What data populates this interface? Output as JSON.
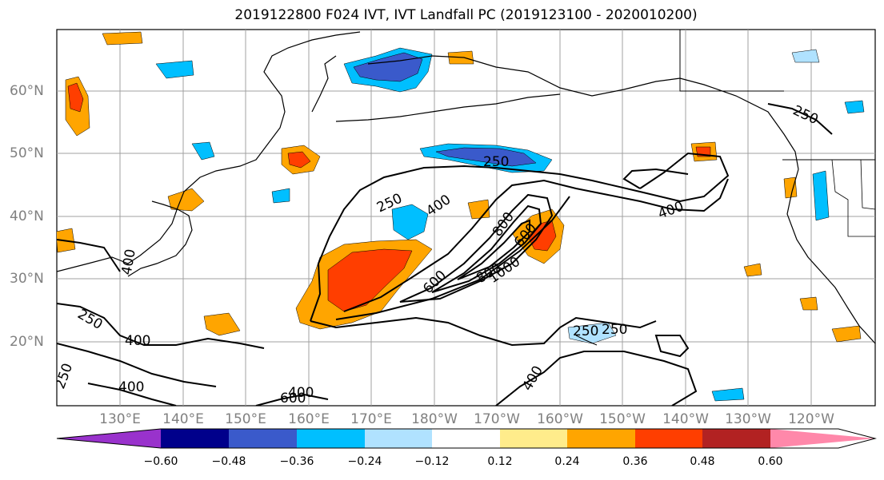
{
  "title": "2019122800 F024 IVT, IVT Landfall PC (2019123100 - 2020010200)",
  "lat_labels": [
    "60°N",
    "50°N",
    "40°N",
    "30°N",
    "20°N"
  ],
  "lon_labels": [
    "130°E",
    "140°E",
    "150°E",
    "160°E",
    "170°E",
    "180°W",
    "170°W",
    "160°W",
    "150°W",
    "140°W",
    "130°W",
    "120°W"
  ],
  "contour_labels": [
    "250",
    "250",
    "250",
    "250",
    "250",
    "250",
    "400",
    "400",
    "400",
    "400",
    "400",
    "400",
    "600",
    "600",
    "800",
    "800",
    "1000",
    "600",
    "400",
    "250"
  ],
  "colorbar": {
    "ticks": [
      "−0.60",
      "−0.48",
      "−0.36",
      "−0.24",
      "−0.12",
      "0.12",
      "0.24",
      "0.36",
      "0.48",
      "0.60"
    ],
    "colors": [
      "#9932CC",
      "#00008B",
      "#3A5ACB",
      "#00BFFF",
      "#B0E2FF",
      "#FFFFFF",
      "#FFEC8B",
      "#FFA500",
      "#FF3E00",
      "#B22222",
      "#FF88AA"
    ]
  },
  "colors": {
    "positive_strong": "#FF3E00",
    "positive_mid": "#FFA500",
    "positive_weak": "#FFEC8B",
    "negative_strong": "#3A5ACB",
    "negative_mid": "#00BFFF",
    "negative_weak": "#B0E2FF"
  }
}
